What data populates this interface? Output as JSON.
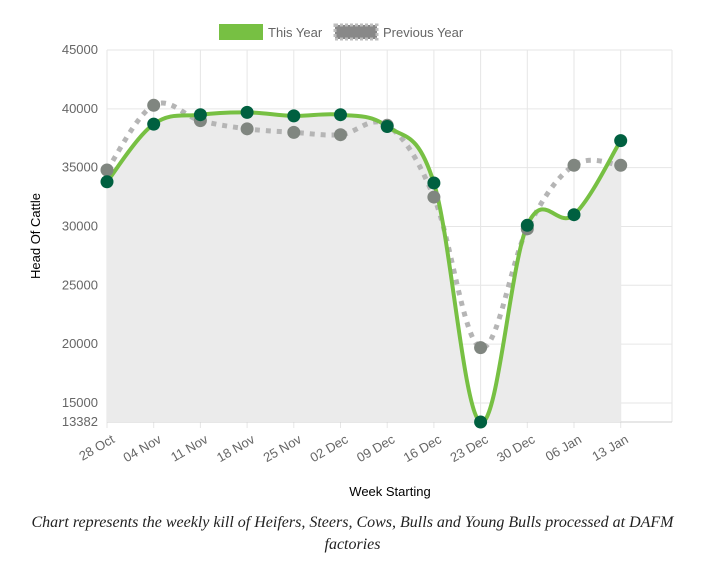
{
  "caption": "Chart represents the weekly kill of Heifers, Steers, Cows, Bulls and Young Bulls processed at DAFM factories",
  "chart_data": {
    "type": "line",
    "xlabel": "Week Starting",
    "ylabel": "Head Of Cattle",
    "categories": [
      "28 Oct",
      "04 Nov",
      "11 Nov",
      "18 Nov",
      "25 Nov",
      "02 Dec",
      "09 Dec",
      "16 Dec",
      "23 Dec",
      "30 Dec",
      "06 Jan",
      "13 Jan"
    ],
    "ylim": [
      13382,
      45000
    ],
    "yticks": [
      "45000",
      "40000",
      "35000",
      "30000",
      "25000",
      "20000",
      "15000",
      "13382"
    ],
    "ytick_values": [
      45000,
      40000,
      35000,
      30000,
      25000,
      20000,
      15000,
      13382
    ],
    "grid": true,
    "legend_position": "top",
    "series": [
      {
        "name": "This Year",
        "style": "solid-filled",
        "color": "#77c043",
        "marker_color": "#006040",
        "values": [
          33800,
          38700,
          39500,
          39700,
          39400,
          39500,
          38500,
          33700,
          13382,
          30100,
          31000,
          37300
        ]
      },
      {
        "name": "Previous Year",
        "style": "dotted",
        "color": "#b5b5b5",
        "marker_color": "#808680",
        "values": [
          34800,
          40300,
          39000,
          38300,
          38000,
          37800,
          38600,
          32500,
          19700,
          29800,
          35200,
          35200
        ]
      }
    ]
  }
}
